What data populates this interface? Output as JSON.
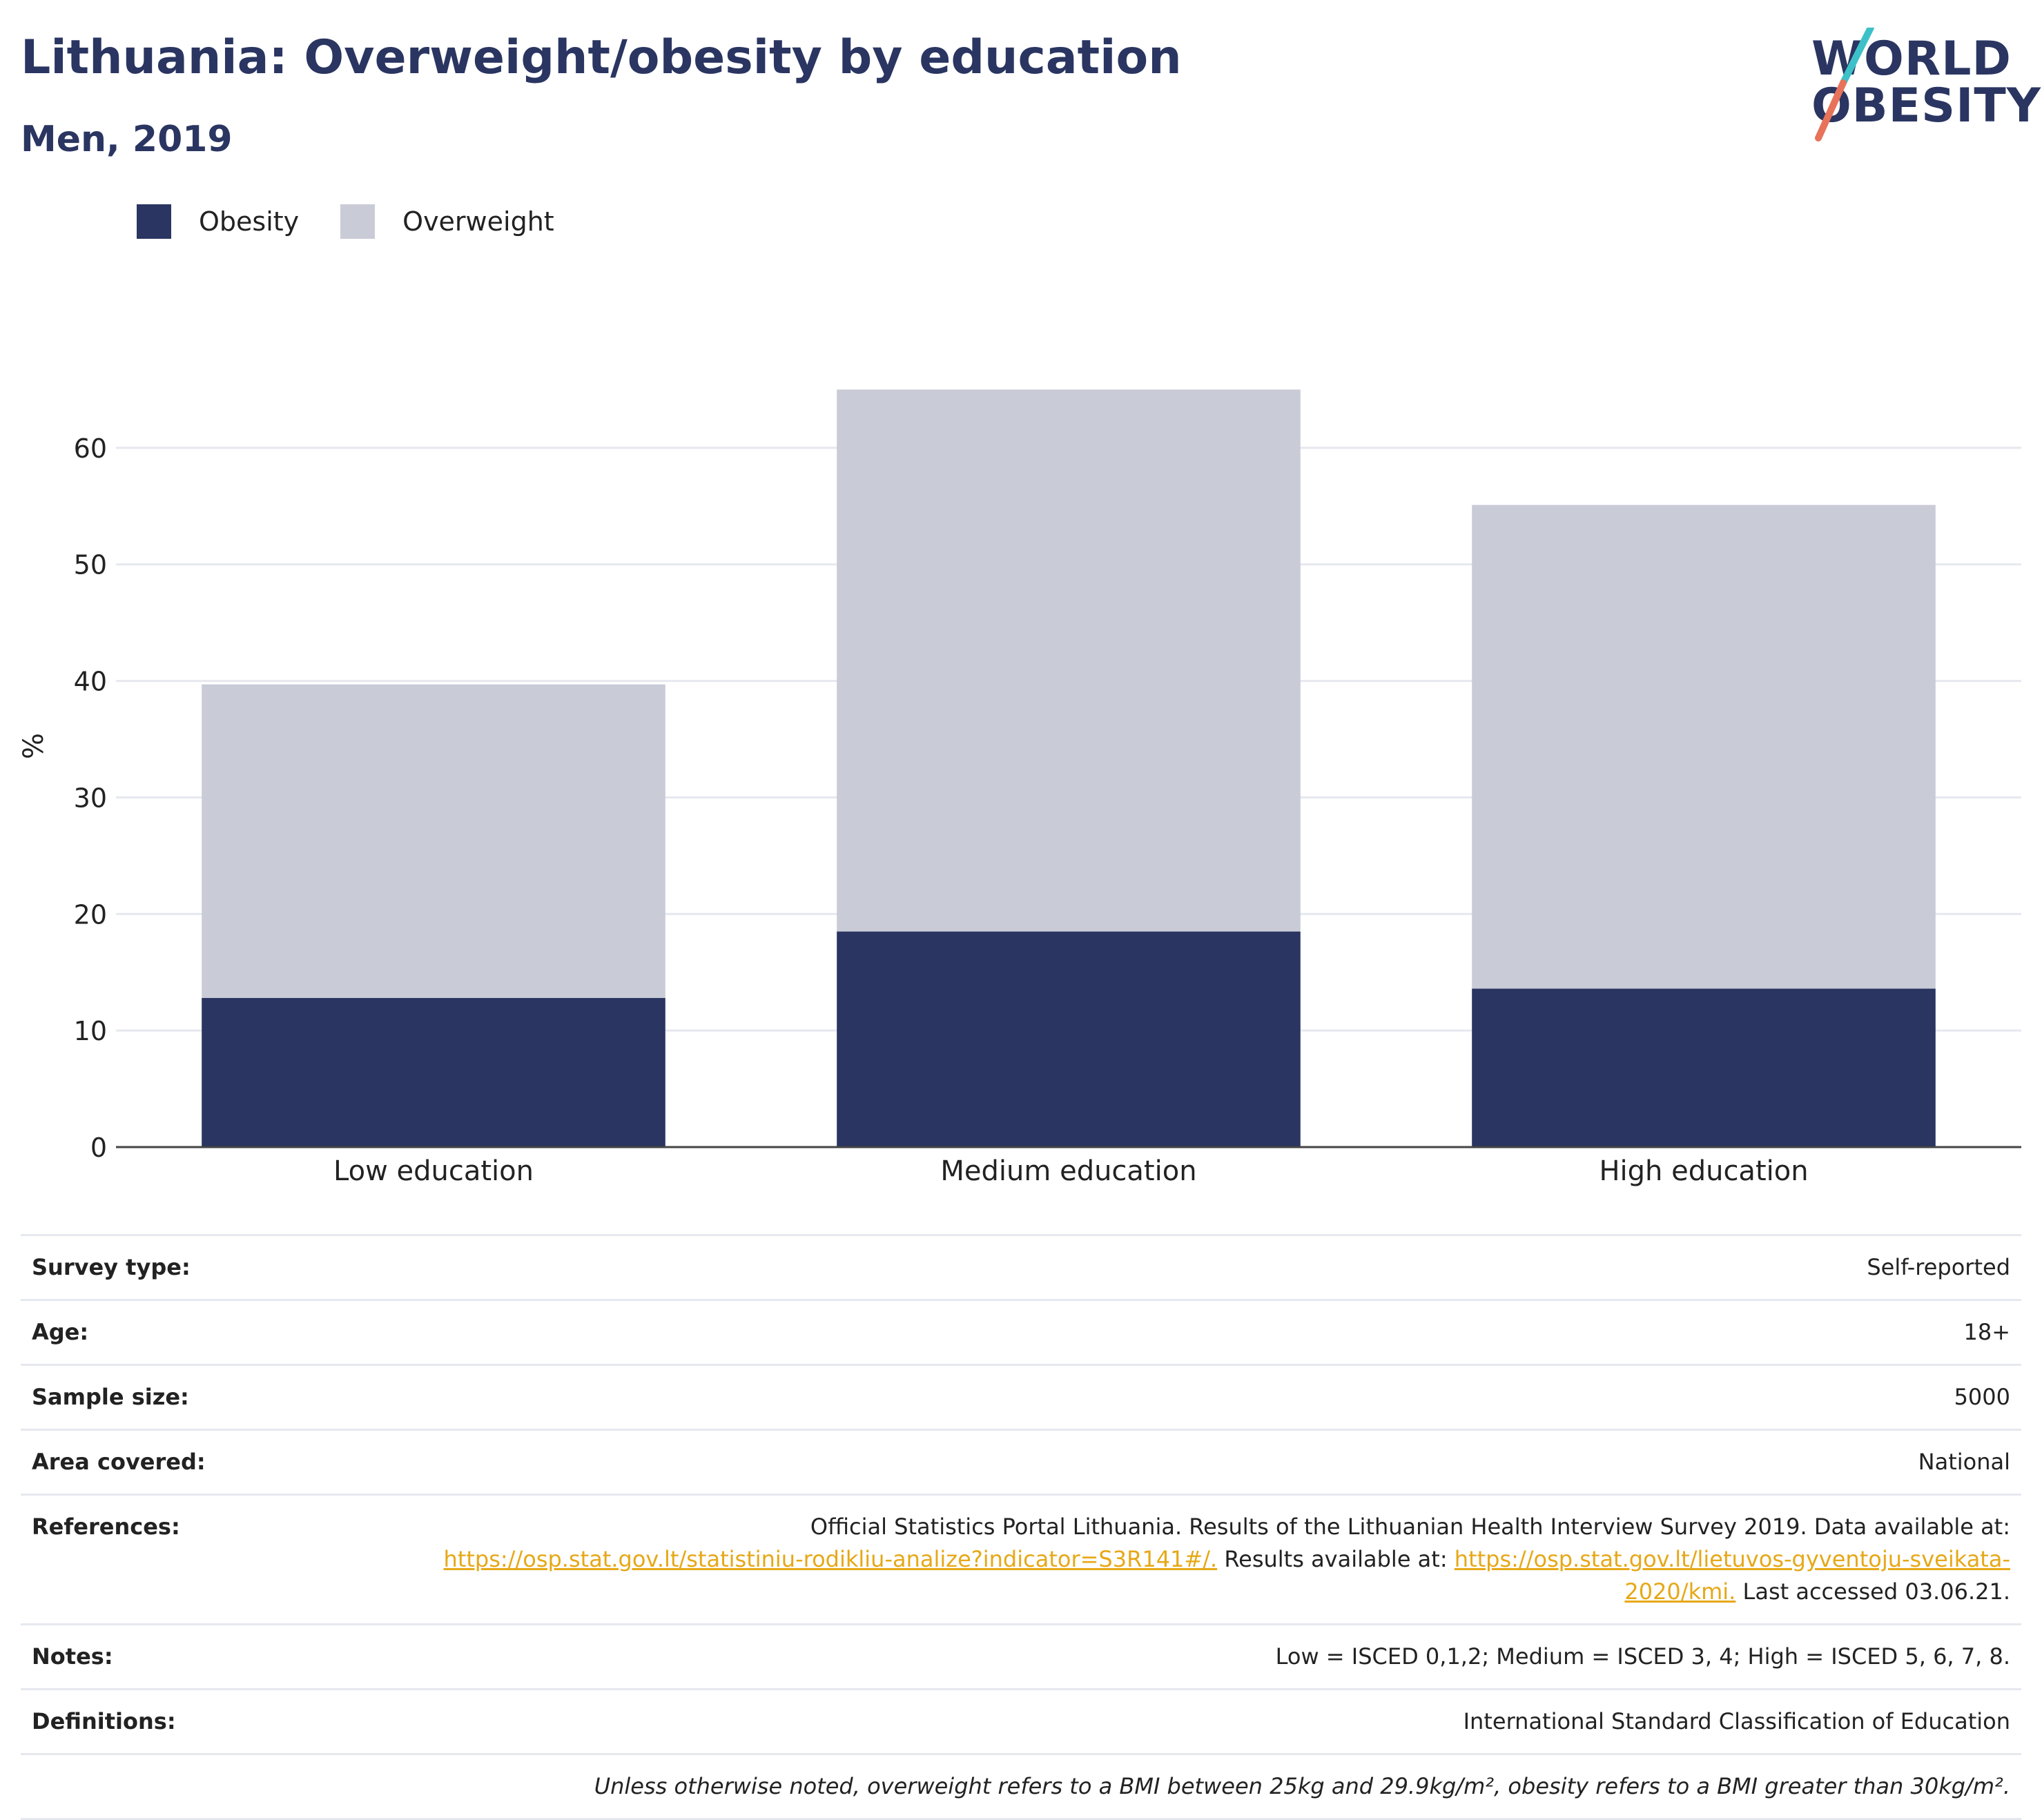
{
  "title": "Lithuania: Overweight/obesity by education",
  "subtitle": "Men, 2019",
  "logo": {
    "line1": "WORLD",
    "line2": "OBESITY"
  },
  "legend": [
    {
      "label": "Obesity",
      "color": "#2a3561"
    },
    {
      "label": "Overweight",
      "color": "#c9cbd7"
    }
  ],
  "chart_data": {
    "type": "bar",
    "stacked": true,
    "categories": [
      "Low education",
      "Medium education",
      "High education"
    ],
    "series": [
      {
        "name": "Obesity",
        "values": [
          12.8,
          18.5,
          13.6
        ],
        "color": "#2a3561"
      },
      {
        "name": "Overweight",
        "values": [
          26.9,
          46.5,
          41.5
        ],
        "color": "#c9cbd7"
      }
    ],
    "ylabel": "%",
    "xlabel": "",
    "ylim": [
      0,
      70
    ],
    "yticks": [
      0,
      10,
      20,
      30,
      40,
      50,
      60
    ],
    "grid": true,
    "legend_position": "top-left"
  },
  "meta": {
    "survey_type": {
      "key": "Survey type:",
      "value": "Self-reported"
    },
    "age": {
      "key": "Age:",
      "value": "18+"
    },
    "sample_size": {
      "key": "Sample size:",
      "value": "5000"
    },
    "area": {
      "key": "Area covered:",
      "value": "National"
    },
    "references": {
      "key": "References:",
      "text1": "Official Statistics Portal Lithuania. Results of the Lithuanian Health Interview Survey 2019. Data available at:",
      "link1": "https://osp.stat.gov.lt/statistiniu-rodikliu-analize?indicator=S3R141#/.",
      "text2": " Results available at: ",
      "link2": "https://osp.stat.gov.lt/lietuvos-gyventoju-sveikata-2020/kmi.",
      "text3": " Last accessed 03.06.21."
    },
    "notes": {
      "key": "Notes:",
      "value": "Low = ISCED 0,1,2; Medium = ISCED 3, 4; High = ISCED 5, 6, 7, 8."
    },
    "definitions": {
      "key": "Definitions:",
      "value": "International Standard Classification of Education"
    },
    "footnote": "Unless otherwise noted, overweight refers to a BMI between 25kg and 29.9kg/m², obesity refers to a BMI greater than 30kg/m²."
  }
}
